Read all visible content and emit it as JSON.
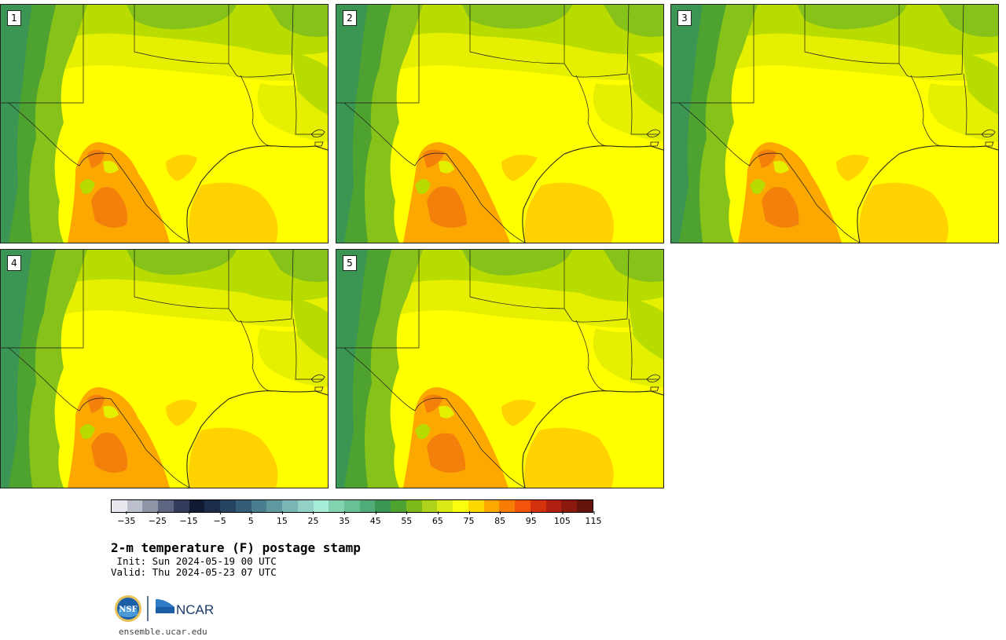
{
  "panels": [
    {
      "label": "1"
    },
    {
      "label": "2"
    },
    {
      "label": "3"
    },
    {
      "label": "4"
    },
    {
      "label": "5"
    }
  ],
  "colorbar": {
    "colors": [
      "#e8e8ee",
      "#bcbfcc",
      "#8f94a7",
      "#5e6580",
      "#343c5c",
      "#101a33",
      "#1b2d4a",
      "#274563",
      "#345d78",
      "#4a7d8d",
      "#5f999f",
      "#79b6b5",
      "#93d1c7",
      "#a7ecd8",
      "#82d3b0",
      "#68c095",
      "#4fac79",
      "#3b9653",
      "#4ea22f",
      "#7eb91c",
      "#aed21a",
      "#d9ea17",
      "#fbfd11",
      "#ffd800",
      "#fca800",
      "#f87d05",
      "#f2540c",
      "#d4320d",
      "#b01f0f",
      "#8c190e",
      "#65140c"
    ],
    "tick_labels": [
      "−35",
      "−25",
      "−15",
      "−5",
      "5",
      "15",
      "25",
      "35",
      "45",
      "55",
      "65",
      "75",
      "85",
      "95",
      "105",
      "115"
    ]
  },
  "title": "2-m temperature (F) postage stamp",
  "init": " Init: Sun 2024-05-19 00 UTC",
  "valid": "Valid: Thu 2024-05-23 07 UTC",
  "footer": {
    "site": "ensemble.ucar.edu",
    "logo_left": "NSF",
    "logo_right": "NCAR"
  },
  "colors": {
    "hot": "#ffd200",
    "warm": "#ffff00",
    "mild": "#e4f000",
    "cool": "#b8dc00",
    "cooler": "#86c21a",
    "cold_high": "#4ea22f",
    "mountain": "#3b9653",
    "heat_core": "#fca800",
    "heat_peak": "#f2800a"
  }
}
